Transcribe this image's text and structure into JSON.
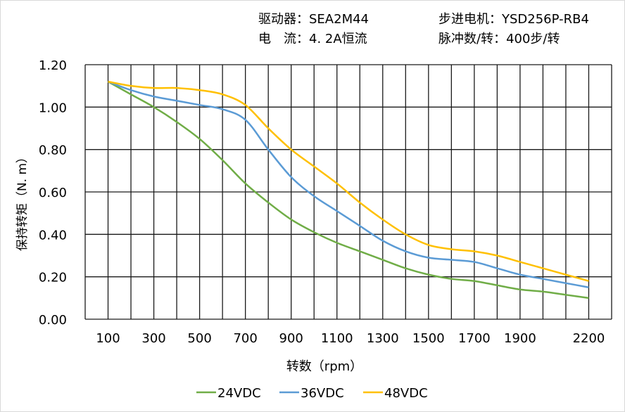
{
  "header": {
    "driver": "驱动器：SEA2M44",
    "motor": "步进电机：YSD256P-RB4",
    "current": "电　流：4. 2A恒流",
    "pulses": "脉冲数/转：400步/转"
  },
  "chart_data": {
    "type": "line",
    "xlabel": "转数（rpm）",
    "ylabel": "保持转矩（N. m）",
    "xlim": [
      0,
      2300
    ],
    "ylim": [
      0,
      1.2
    ],
    "x_ticks": [
      100,
      300,
      500,
      700,
      900,
      1100,
      1300,
      1500,
      1700,
      1900,
      2200
    ],
    "x_tick_labels": [
      "100",
      "300",
      "500",
      "700",
      "900",
      "1100",
      "1300",
      "1500",
      "1700",
      "1900",
      "2200"
    ],
    "y_ticks": [
      0,
      0.2,
      0.4,
      0.6,
      0.8,
      1.0,
      1.2
    ],
    "y_tick_labels": [
      "0.00",
      "0.20",
      "0.40",
      "0.60",
      "0.80",
      "1.00",
      "1.20"
    ],
    "grid": true,
    "legend": "bottom",
    "x": [
      100,
      200,
      300,
      400,
      500,
      600,
      700,
      800,
      900,
      1000,
      1100,
      1200,
      1300,
      1400,
      1500,
      1600,
      1700,
      1800,
      1900,
      2000,
      2100,
      2200
    ],
    "series": [
      {
        "name": "24VDC",
        "color": "#70ad47",
        "values": [
          1.12,
          1.06,
          1.0,
          0.93,
          0.85,
          0.75,
          0.64,
          0.55,
          0.47,
          0.41,
          0.36,
          0.32,
          0.28,
          0.24,
          0.21,
          0.19,
          0.18,
          0.16,
          0.14,
          0.13,
          0.115,
          0.1
        ]
      },
      {
        "name": "36VDC",
        "color": "#5b9bd5",
        "values": [
          1.12,
          1.08,
          1.05,
          1.03,
          1.01,
          0.99,
          0.94,
          0.8,
          0.67,
          0.58,
          0.51,
          0.44,
          0.37,
          0.32,
          0.29,
          0.28,
          0.27,
          0.24,
          0.21,
          0.19,
          0.17,
          0.15
        ]
      },
      {
        "name": "48VDC",
        "color": "#ffc000",
        "values": [
          1.12,
          1.1,
          1.09,
          1.09,
          1.08,
          1.06,
          1.01,
          0.9,
          0.8,
          0.72,
          0.64,
          0.55,
          0.47,
          0.4,
          0.35,
          0.33,
          0.32,
          0.3,
          0.27,
          0.24,
          0.21,
          0.18
        ]
      }
    ]
  }
}
